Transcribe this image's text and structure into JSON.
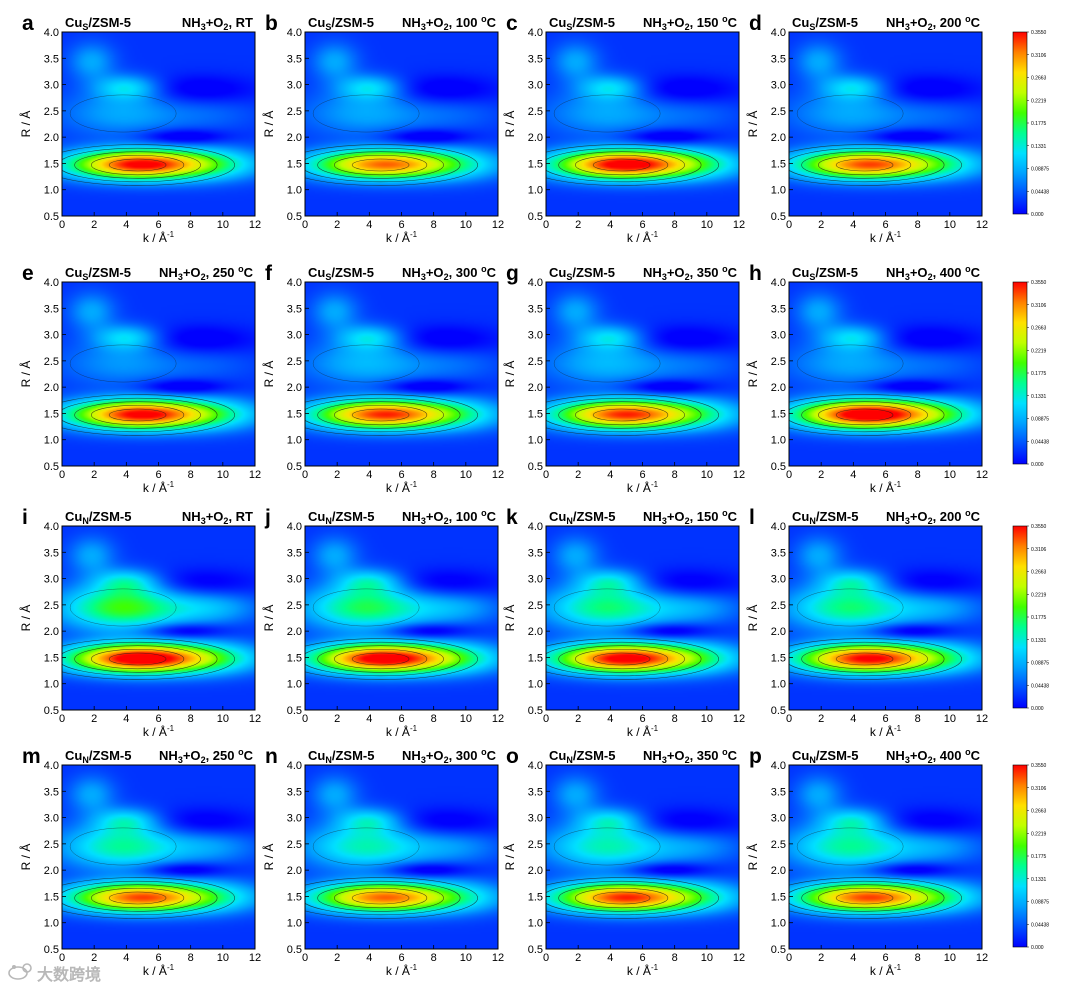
{
  "chart_data": {
    "type": "heatmap",
    "axes": {
      "x_label": "k / Å",
      "x_label_sup": "-1",
      "y_label": "R / Å",
      "xlim": [
        0,
        12
      ],
      "ylim": [
        0.5,
        4.0
      ],
      "x_ticks": [
        "0",
        "2",
        "4",
        "6",
        "8",
        "10",
        "12"
      ],
      "y_ticks": [
        "0.5",
        "1.0",
        "1.5",
        "2.0",
        "2.5",
        "3.0",
        "3.5",
        "4.0"
      ]
    },
    "colorbar": {
      "min": 0,
      "max": 0.355,
      "tick_labels": [
        "0.3550",
        "0.3106",
        "0.2663",
        "0.2219",
        "0.1775",
        "0.1331",
        "0.08875",
        "0.04438",
        "0.000"
      ],
      "colors": [
        "#0000ff",
        "#0050ff",
        "#00a0ff",
        "#00e0ff",
        "#00ff90",
        "#40ff00",
        "#c0ff00",
        "#ffe000",
        "#ff8000",
        "#ff0000"
      ]
    },
    "panels": [
      {
        "letter": "a",
        "sample": "Cu",
        "sub": "S",
        "suffix": "/ZSM-5",
        "gas": "NH",
        "gas_sub1": "3",
        "gas_mid": "+O",
        "gas_sub2": "2",
        "condition": ", RT",
        "deg": false,
        "main_peak": 0.33,
        "second_shell": 0.06
      },
      {
        "letter": "b",
        "sample": "Cu",
        "sub": "S",
        "suffix": "/ZSM-5",
        "gas": "NH",
        "gas_sub1": "3",
        "gas_mid": "+O",
        "gas_sub2": "2",
        "condition": ", 100 ",
        "deg": true,
        "main_peak": 0.29,
        "second_shell": 0.06
      },
      {
        "letter": "c",
        "sample": "Cu",
        "sub": "S",
        "suffix": "/ZSM-5",
        "gas": "NH",
        "gas_sub1": "3",
        "gas_mid": "+O",
        "gas_sub2": "2",
        "condition": ", 150 ",
        "deg": true,
        "main_peak": 0.34,
        "second_shell": 0.06
      },
      {
        "letter": "d",
        "sample": "Cu",
        "sub": "S",
        "suffix": "/ZSM-5",
        "gas": "NH",
        "gas_sub1": "3",
        "gas_mid": "+O",
        "gas_sub2": "2",
        "condition": ", 200 ",
        "deg": true,
        "main_peak": 0.3,
        "second_shell": 0.06
      },
      {
        "letter": "e",
        "sample": "Cu",
        "sub": "S",
        "suffix": "/ZSM-5",
        "gas": "NH",
        "gas_sub1": "3",
        "gas_mid": "+O",
        "gas_sub2": "2",
        "condition": ", 250 ",
        "deg": true,
        "main_peak": 0.33,
        "second_shell": 0.05
      },
      {
        "letter": "f",
        "sample": "Cu",
        "sub": "S",
        "suffix": "/ZSM-5",
        "gas": "NH",
        "gas_sub1": "3",
        "gas_mid": "+O",
        "gas_sub2": "2",
        "condition": ", 300 ",
        "deg": true,
        "main_peak": 0.31,
        "second_shell": 0.07
      },
      {
        "letter": "g",
        "sample": "Cu",
        "sub": "S",
        "suffix": "/ZSM-5",
        "gas": "NH",
        "gas_sub1": "3",
        "gas_mid": "+O",
        "gas_sub2": "2",
        "condition": ", 350 ",
        "deg": true,
        "main_peak": 0.31,
        "second_shell": 0.07
      },
      {
        "letter": "h",
        "sample": "Cu",
        "sub": "S",
        "suffix": "/ZSM-5",
        "gas": "NH",
        "gas_sub1": "3",
        "gas_mid": "+O",
        "gas_sub2": "2",
        "condition": ", 400 ",
        "deg": true,
        "main_peak": 0.355,
        "second_shell": 0.06
      },
      {
        "letter": "i",
        "sample": "Cu",
        "sub": "N",
        "suffix": "/ZSM-5",
        "gas": "NH",
        "gas_sub1": "3",
        "gas_mid": "+O",
        "gas_sub2": "2",
        "condition": ", RT",
        "deg": false,
        "main_peak": 0.355,
        "second_shell": 0.17
      },
      {
        "letter": "j",
        "sample": "Cu",
        "sub": "N",
        "suffix": "/ZSM-5",
        "gas": "NH",
        "gas_sub1": "3",
        "gas_mid": "+O",
        "gas_sub2": "2",
        "condition": ", 100 ",
        "deg": true,
        "main_peak": 0.345,
        "second_shell": 0.15
      },
      {
        "letter": "k",
        "sample": "Cu",
        "sub": "N",
        "suffix": "/ZSM-5",
        "gas": "NH",
        "gas_sub1": "3",
        "gas_mid": "+O",
        "gas_sub2": "2",
        "condition": ", 150 ",
        "deg": true,
        "main_peak": 0.335,
        "second_shell": 0.14
      },
      {
        "letter": "l",
        "sample": "Cu",
        "sub": "N",
        "suffix": "/ZSM-5",
        "gas": "NH",
        "gas_sub1": "3",
        "gas_mid": "+O",
        "gas_sub2": "2",
        "condition": ", 200 ",
        "deg": true,
        "main_peak": 0.325,
        "second_shell": 0.14
      },
      {
        "letter": "m",
        "sample": "Cu",
        "sub": "N",
        "suffix": "/ZSM-5",
        "gas": "NH",
        "gas_sub1": "3",
        "gas_mid": "+O",
        "gas_sub2": "2",
        "condition": ", 250 ",
        "deg": true,
        "main_peak": 0.3,
        "second_shell": 0.13
      },
      {
        "letter": "n",
        "sample": "Cu",
        "sub": "N",
        "suffix": "/ZSM-5",
        "gas": "NH",
        "gas_sub1": "3",
        "gas_mid": "+O",
        "gas_sub2": "2",
        "condition": ", 300 ",
        "deg": true,
        "main_peak": 0.29,
        "second_shell": 0.12
      },
      {
        "letter": "o",
        "sample": "Cu",
        "sub": "N",
        "suffix": "/ZSM-5",
        "gas": "NH",
        "gas_sub1": "3",
        "gas_mid": "+O",
        "gas_sub2": "2",
        "condition": ", 350 ",
        "deg": true,
        "main_peak": 0.31,
        "second_shell": 0.12
      },
      {
        "letter": "p",
        "sample": "Cu",
        "sub": "N",
        "suffix": "/ZSM-5",
        "gas": "NH",
        "gas_sub1": "3",
        "gas_mid": "+O",
        "gas_sub2": "2",
        "condition": ", 400 ",
        "deg": true,
        "main_peak": 0.3,
        "second_shell": 0.13
      }
    ]
  },
  "watermark": {
    "text": "大数跨境",
    "icon": "brand-logo-icon"
  }
}
